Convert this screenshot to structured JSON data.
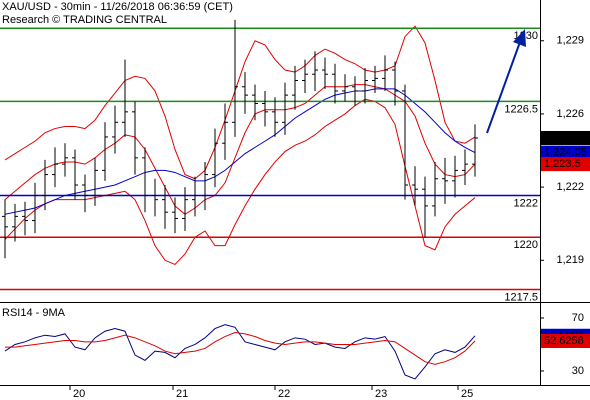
{
  "chart_data": [
    {
      "type": "ohlc",
      "title": "XAU/USD - 30min - 11/26/2018 06:36:59 (CET)",
      "subtitle": "Research © TRADING CENTRAL",
      "color": "#000000",
      "open": [
        1221.0,
        1220.5,
        1221.0,
        1220.8,
        1222.0,
        1223.0,
        1223.5,
        1223.8,
        1222.5,
        1222.0,
        1223.2,
        1224.8,
        1225.5,
        1226.0,
        1223.8,
        1222.0,
        1221.8,
        1221.2,
        1220.9,
        1221.8,
        1222.0,
        1223.0,
        1224.5,
        1225.5,
        1227.2,
        1226.8,
        1226.4,
        1226.0,
        1225.5,
        1226.8,
        1227.5,
        1227.8,
        1228.0,
        1227.8,
        1227.0,
        1227.2,
        1227.0,
        1227.5,
        1227.6,
        1228.0,
        1227.0,
        1222.5,
        1222.3,
        1221.5,
        1222.8,
        1222.7,
        1223.2,
        1223.5
      ],
      "high": [
        1221.8,
        1221.6,
        1221.7,
        1222.6,
        1223.7,
        1224.3,
        1224.5,
        1224.2,
        1223.0,
        1223.8,
        1225.5,
        1226.3,
        1228.5,
        1226.5,
        1224.3,
        1222.8,
        1222.5,
        1221.9,
        1222.4,
        1222.9,
        1223.6,
        1225.2,
        1226.4,
        1230.4,
        1227.9,
        1227.3,
        1227.0,
        1226.7,
        1227.4,
        1228.2,
        1228.5,
        1228.9,
        1228.6,
        1228.3,
        1227.8,
        1227.7,
        1228.1,
        1228.2,
        1228.7,
        1228.4,
        1227.3,
        1223.4,
        1222.9,
        1223.6,
        1223.8,
        1223.9,
        1224.2,
        1225.4
      ],
      "low": [
        1219.0,
        1219.8,
        1220.1,
        1220.2,
        1221.3,
        1222.4,
        1222.9,
        1221.8,
        1221.2,
        1221.5,
        1222.7,
        1224.0,
        1224.8,
        1223.0,
        1221.2,
        1221.0,
        1220.4,
        1220.2,
        1220.3,
        1221.0,
        1221.3,
        1222.4,
        1223.7,
        1224.8,
        1225.9,
        1225.6,
        1225.3,
        1224.8,
        1224.9,
        1226.1,
        1226.9,
        1227.0,
        1227.1,
        1226.4,
        1226.5,
        1226.3,
        1226.4,
        1226.9,
        1227.0,
        1226.3,
        1221.8,
        1221.5,
        1220.0,
        1221.0,
        1221.6,
        1221.9,
        1222.5,
        1222.9
      ],
      "close": [
        1220.5,
        1221.0,
        1220.8,
        1222.0,
        1223.0,
        1223.5,
        1223.8,
        1222.5,
        1222.0,
        1223.2,
        1224.8,
        1225.5,
        1226.0,
        1223.8,
        1222.0,
        1221.8,
        1221.2,
        1220.9,
        1221.8,
        1222.0,
        1223.0,
        1224.5,
        1225.5,
        1227.2,
        1226.8,
        1226.4,
        1226.0,
        1225.5,
        1226.8,
        1227.5,
        1227.8,
        1228.0,
        1227.8,
        1227.0,
        1227.2,
        1227.0,
        1227.5,
        1227.6,
        1228.0,
        1227.0,
        1222.5,
        1222.3,
        1221.5,
        1222.8,
        1222.7,
        1223.2,
        1223.5,
        1224.75
      ],
      "overlays": [
        {
          "color": "#e00000",
          "values": [
            1223.7,
            1224.0,
            1224.3,
            1224.6,
            1225.0,
            1225.2,
            1225.3,
            1225.3,
            1225.2,
            1225.6,
            1226.3,
            1226.9,
            1227.5,
            1227.7,
            1227.6,
            1227.0,
            1225.8,
            1224.2,
            1223.0,
            1222.8,
            1223.2,
            1224.3,
            1225.6,
            1227.0,
            1228.4,
            1229.4,
            1229.2,
            1228.5,
            1228.0,
            1227.9,
            1228.2,
            1228.7,
            1229.0,
            1228.8,
            1228.5,
            1228.3,
            1228.0,
            1227.9,
            1228.0,
            1228.2,
            1229.6,
            1230.1,
            1229.3,
            1227.5,
            1225.5,
            1224.6,
            1224.5,
            1224.8
          ]
        },
        {
          "color": "#e00000",
          "values": [
            1219.9,
            1220.4,
            1220.9,
            1221.3,
            1221.6,
            1221.8,
            1221.8,
            1221.8,
            1221.8,
            1221.9,
            1222.0,
            1222.1,
            1222.2,
            1221.8,
            1220.8,
            1219.6,
            1218.9,
            1218.7,
            1219.2,
            1220.0,
            1220.3,
            1219.6,
            1219.6,
            1220.6,
            1221.5,
            1222.3,
            1223.0,
            1223.6,
            1224.1,
            1224.4,
            1224.6,
            1224.9,
            1225.3,
            1225.6,
            1225.9,
            1226.3,
            1226.6,
            1226.5,
            1226.2,
            1225.4,
            1223.4,
            1221.5,
            1219.6,
            1219.4,
            1220.5,
            1221.1,
            1221.5,
            1221.9
          ]
        },
        {
          "color": "#e00000",
          "values": [
            1221.8,
            1222.2,
            1222.6,
            1223.0,
            1223.3,
            1223.5,
            1223.6,
            1223.6,
            1223.5,
            1223.8,
            1224.2,
            1224.5,
            1224.9,
            1224.8,
            1224.2,
            1223.3,
            1222.4,
            1221.5,
            1221.1,
            1221.4,
            1221.8,
            1222.0,
            1222.6,
            1223.8,
            1225.0,
            1225.9,
            1226.1,
            1226.1,
            1226.1,
            1226.2,
            1226.4,
            1226.8,
            1227.2,
            1227.2,
            1227.2,
            1227.3,
            1227.3,
            1227.2,
            1227.1,
            1226.8,
            1226.5,
            1225.8,
            1224.5,
            1223.5,
            1223.0,
            1222.9,
            1223.0,
            1223.5
          ]
        },
        {
          "color": "#0000cc",
          "values": [
            1221.1,
            1221.2,
            1221.3,
            1221.4,
            1221.6,
            1221.8,
            1222.0,
            1222.1,
            1222.2,
            1222.3,
            1222.4,
            1222.5,
            1222.7,
            1222.9,
            1223.1,
            1223.2,
            1223.2,
            1223.1,
            1222.9,
            1222.7,
            1222.7,
            1222.9,
            1223.2,
            1223.6,
            1224.0,
            1224.3,
            1224.6,
            1224.9,
            1225.3,
            1225.7,
            1226.0,
            1226.3,
            1226.6,
            1226.8,
            1226.9,
            1227.0,
            1227.0,
            1227.1,
            1227.1,
            1227.1,
            1226.8,
            1226.4,
            1226.0,
            1225.5,
            1225.0,
            1224.6,
            1224.3,
            1224.05
          ]
        }
      ],
      "levels": [
        {
          "value": 1230,
          "color": "#1a8c1a"
        },
        {
          "value": 1226.5,
          "color": "#1a8c1a"
        },
        {
          "value": 1222,
          "color": "#0000cc"
        },
        {
          "value": 1220,
          "color": "#e00000"
        },
        {
          "value": 1217.5,
          "color": "#e00000"
        }
      ],
      "last_values": [
        {
          "value": 1224.75,
          "label": "1,224.75",
          "color": "#000000"
        },
        {
          "value": 1224.05,
          "label": "1,224.05",
          "color": "#0000cc"
        },
        {
          "value": 1223.5,
          "label": "1,223.5",
          "color": "#e00000"
        }
      ],
      "xlim": [
        -0.5,
        53.5
      ],
      "ylim": [
        1217,
        1231.35
      ],
      "yticks": [
        {
          "value": 1229.4,
          "label": "1,229"
        },
        {
          "value": 1225.9,
          "label": "1,226"
        },
        {
          "value": 1222.4,
          "label": "1,222"
        },
        {
          "value": 1218.9,
          "label": "1,219"
        }
      ]
    },
    {
      "type": "line",
      "title": "RSI14 - 9MA",
      "series": [
        {
          "color": "#000080",
          "values": [
            45,
            50,
            52,
            55,
            57,
            56,
            58,
            48,
            46,
            55,
            60,
            62,
            60,
            42,
            38,
            45,
            44,
            40,
            47,
            50,
            55,
            62,
            65,
            63,
            52,
            50,
            48,
            46,
            52,
            55,
            54,
            50,
            51,
            48,
            47,
            52,
            55,
            54,
            56,
            45,
            27,
            24,
            33,
            43,
            46,
            44,
            48,
            56.5684
          ]
        },
        {
          "color": "#e00000",
          "values": [
            48,
            48,
            49,
            50,
            51,
            52,
            53,
            53,
            52,
            52,
            53,
            55,
            57,
            55,
            52,
            49,
            45,
            43,
            44,
            45,
            47,
            52,
            56,
            59,
            58,
            56,
            53,
            51,
            50,
            51,
            52,
            52,
            51,
            50,
            50,
            50,
            51,
            52,
            53,
            52,
            47,
            42,
            37,
            35,
            37,
            40,
            45,
            52.6258
          ]
        }
      ],
      "last_values": [
        {
          "value": 56.5684,
          "color": "#0000cc"
        },
        {
          "value": 52.6258,
          "color": "#e00000"
        }
      ],
      "xlim": [
        -0.5,
        53.5
      ],
      "ylim": [
        19.4,
        79.8
      ],
      "yticks": [
        30,
        70
      ],
      "xticks": [
        {
          "value": 6.5,
          "label": "20"
        },
        {
          "value": 16.8,
          "label": "21"
        },
        {
          "value": 27,
          "label": "22"
        },
        {
          "value": 36.7,
          "label": "23"
        },
        {
          "value": 45.3,
          "label": "25"
        }
      ]
    }
  ]
}
